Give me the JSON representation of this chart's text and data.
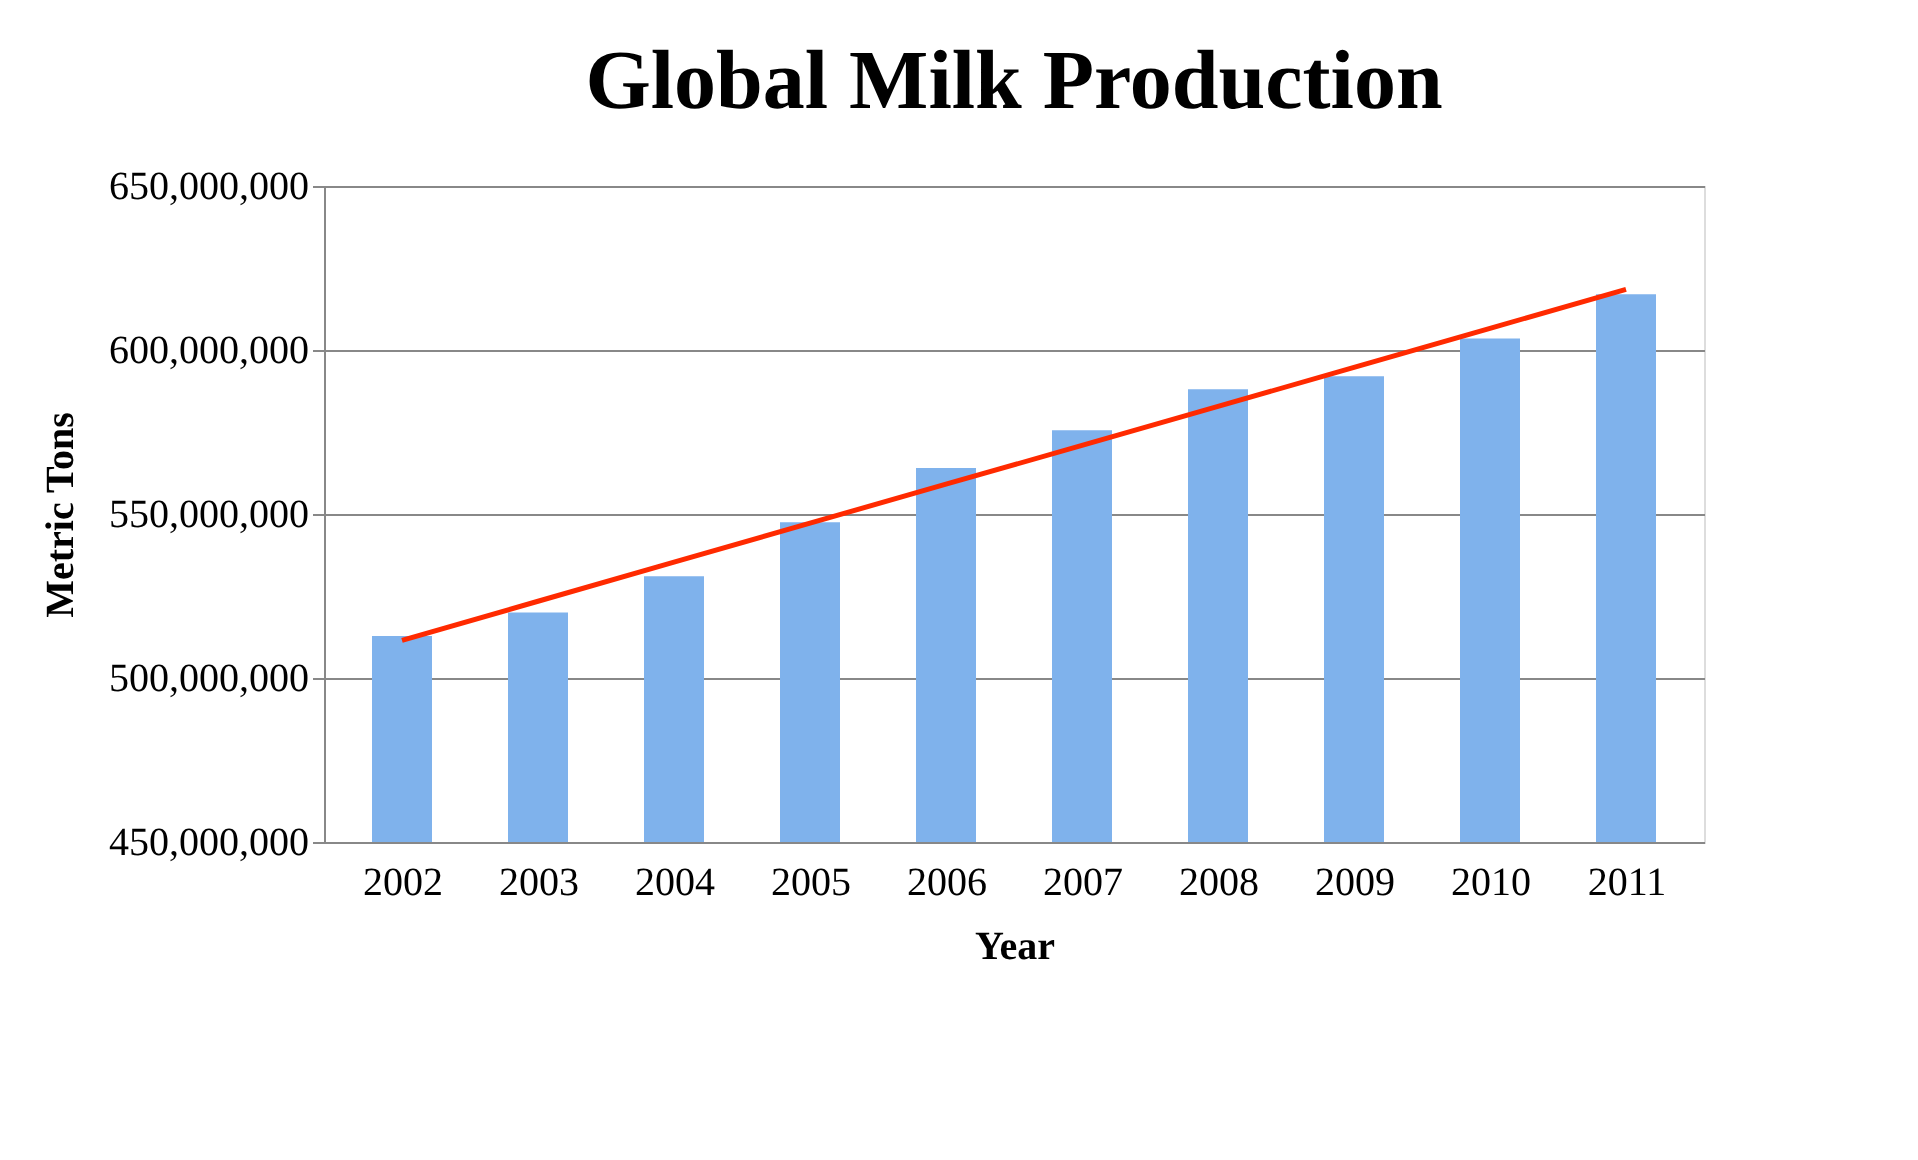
{
  "chart_data": {
    "type": "bar",
    "title": "Global Milk Production",
    "xlabel": "Year",
    "ylabel": "Metric Tons",
    "categories": [
      "2002",
      "2003",
      "2004",
      "2005",
      "2006",
      "2007",
      "2008",
      "2009",
      "2010",
      "2011"
    ],
    "series": [
      {
        "color": "#7fb2ec",
        "values": [
          512800000,
          520000000,
          531000000,
          547500000,
          564000000,
          575500000,
          588000000,
          592000000,
          603500000,
          617000000
        ]
      },
      {
        "type": "line",
        "color": "#ff2a00",
        "values": [
          511500000,
          523400000,
          535300000,
          547200000,
          559100000,
          570900000,
          582800000,
          594700000,
          606600000,
          618500000
        ]
      }
    ],
    "ylim": [
      450000000,
      650000000
    ],
    "yticks": [
      {
        "value": 450000000,
        "label": "450,000,000"
      },
      {
        "value": 500000000,
        "label": "500,000,000"
      },
      {
        "value": 550000000,
        "label": "550,000,000"
      },
      {
        "value": 600000000,
        "label": "600,000,000"
      },
      {
        "value": 650000000,
        "label": "650,000,000"
      }
    ],
    "grid": "y"
  }
}
